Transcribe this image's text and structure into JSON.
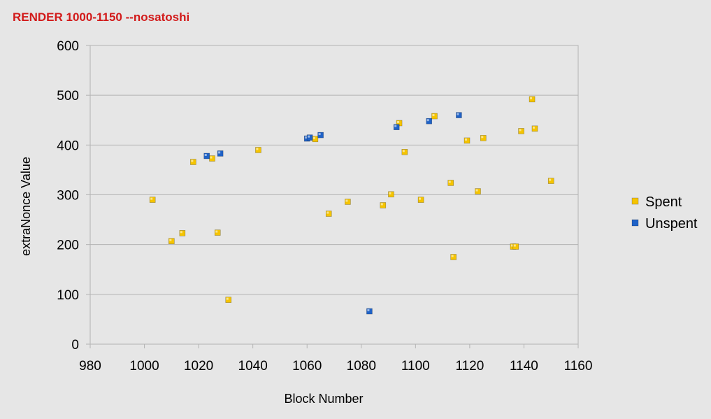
{
  "chart_data": {
    "type": "scatter",
    "title": "RENDER 1000-1150 --nosatoshi",
    "xlabel": "Block Number",
    "ylabel": "extraNonce Value",
    "xlim": [
      980,
      1160
    ],
    "ylim": [
      0,
      600
    ],
    "xticks": [
      980,
      1000,
      1020,
      1040,
      1060,
      1080,
      1100,
      1120,
      1140,
      1160
    ],
    "yticks": [
      0,
      100,
      200,
      300,
      400,
      500,
      600
    ],
    "grid": "horizontal",
    "legend": "right",
    "series": [
      {
        "name": "Spent",
        "color": "#f5c400",
        "points": [
          [
            1003,
            290
          ],
          [
            1010,
            207
          ],
          [
            1014,
            223
          ],
          [
            1018,
            366
          ],
          [
            1025,
            373
          ],
          [
            1027,
            224
          ],
          [
            1031,
            89
          ],
          [
            1042,
            390
          ],
          [
            1063,
            412
          ],
          [
            1068,
            262
          ],
          [
            1075,
            286
          ],
          [
            1088,
            279
          ],
          [
            1091,
            301
          ],
          [
            1094,
            444
          ],
          [
            1096,
            386
          ],
          [
            1102,
            290
          ],
          [
            1107,
            458
          ],
          [
            1113,
            324
          ],
          [
            1114,
            175
          ],
          [
            1119,
            409
          ],
          [
            1123,
            307
          ],
          [
            1125,
            414
          ],
          [
            1136,
            196
          ],
          [
            1137,
            196
          ],
          [
            1139,
            428
          ],
          [
            1143,
            492
          ],
          [
            1144,
            433
          ],
          [
            1150,
            328
          ]
        ]
      },
      {
        "name": "Unspent",
        "color": "#1f62c7",
        "points": [
          [
            1023,
            378
          ],
          [
            1028,
            383
          ],
          [
            1060,
            413
          ],
          [
            1061,
            415
          ],
          [
            1065,
            420
          ],
          [
            1083,
            66
          ],
          [
            1093,
            436
          ],
          [
            1105,
            448
          ],
          [
            1116,
            460
          ]
        ]
      }
    ]
  }
}
